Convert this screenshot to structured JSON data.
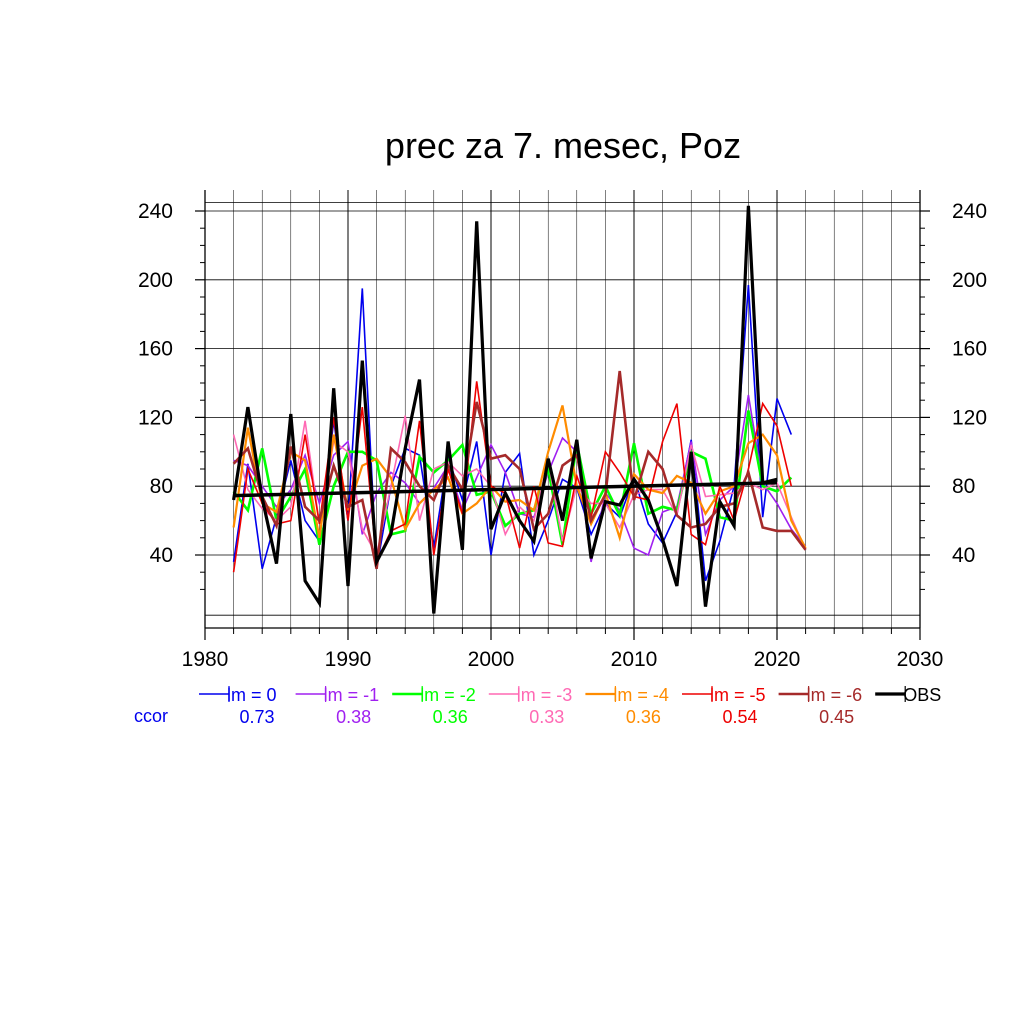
{
  "chart_data": {
    "type": "line",
    "title": "prec za 7. mesec, Poz",
    "xlabel": "",
    "ylabel": "",
    "xlim": [
      1980,
      2030
    ],
    "ylim": [
      5,
      245
    ],
    "x_ticks": [
      1980,
      1990,
      2000,
      2010,
      2020,
      2030
    ],
    "y_ticks": [
      40,
      80,
      120,
      160,
      200,
      240
    ],
    "grid": true,
    "legend_position": "bottom",
    "ccor_label": "ccor",
    "x": [
      1982,
      1983,
      1984,
      1985,
      1986,
      1987,
      1988,
      1989,
      1990,
      1991,
      1992,
      1993,
      1994,
      1995,
      1996,
      1997,
      1998,
      1999,
      2000,
      2001,
      2002,
      2003,
      2004,
      2005,
      2006,
      2007,
      2008,
      2009,
      2010,
      2011,
      2012,
      2013,
      2014,
      2015,
      2016,
      2017,
      2018,
      2019,
      2020,
      2021,
      2022
    ],
    "series": [
      {
        "name": "lm = 0",
        "ccor": "0.73",
        "color": "#0000ee",
        "width": 1.6,
        "values": [
          36,
          93,
          32,
          62,
          95,
          60,
          48,
          118,
          60,
          195,
          32,
          80,
          102,
          98,
          44,
          97,
          72,
          106,
          40,
          88,
          99,
          40,
          60,
          84,
          79,
          52,
          70,
          62,
          85,
          58,
          47,
          65,
          107,
          25,
          48,
          80,
          197,
          62,
          131,
          110,
          null
        ]
      },
      {
        "name": "lm = -1",
        "ccor": "0.38",
        "color": "#a020f0",
        "width": 1.6,
        "values": [
          95,
          92,
          80,
          68,
          78,
          98,
          70,
          98,
          106,
          52,
          76,
          88,
          82,
          70,
          79,
          92,
          66,
          85,
          104,
          88,
          64,
          62,
          88,
          108,
          100,
          36,
          76,
          66,
          44,
          40,
          65,
          68,
          106,
          52,
          72,
          80,
          133,
          82,
          70,
          55,
          45
        ]
      },
      {
        "name": "lm = -2",
        "ccor": "0.36",
        "color": "#00ff00",
        "width": 2.6,
        "values": [
          77,
          66,
          102,
          60,
          74,
          90,
          46,
          80,
          100,
          100,
          95,
          52,
          54,
          97,
          88,
          95,
          104,
          75,
          77,
          57,
          64,
          66,
          90,
          46,
          105,
          64,
          80,
          63,
          105,
          64,
          68,
          66,
          100,
          96,
          62,
          60,
          124,
          80,
          77,
          85,
          null
        ]
      },
      {
        "name": "lm = -3",
        "ccor": "0.33",
        "color": "#ff69b4",
        "width": 1.6,
        "values": [
          110,
          78,
          67,
          60,
          68,
          118,
          58,
          106,
          100,
          55,
          40,
          80,
          121,
          60,
          90,
          94,
          86,
          90,
          80,
          52,
          68,
          60,
          95,
          48,
          80,
          70,
          70,
          56,
          75,
          78,
          78,
          63,
          104,
          74,
          75,
          76,
          82,
          78,
          82,
          62,
          43
        ]
      },
      {
        "name": "lm = -4",
        "ccor": "0.36",
        "color": "#ff8c00",
        "width": 2.2,
        "values": [
          56,
          114,
          70,
          65,
          100,
          95,
          50,
          110,
          66,
          92,
          96,
          85,
          55,
          70,
          78,
          85,
          64,
          70,
          80,
          71,
          72,
          66,
          100,
          127,
          80,
          58,
          76,
          50,
          87,
          78,
          76,
          86,
          82,
          64,
          77,
          80,
          105,
          110,
          98,
          60,
          44
        ]
      },
      {
        "name": "lm = -5",
        "ccor": "0.54",
        "color": "#ee0000",
        "width": 1.6,
        "values": [
          30,
          90,
          70,
          58,
          60,
          110,
          58,
          120,
          60,
          126,
          36,
          54,
          58,
          118,
          40,
          90,
          64,
          141,
          80,
          76,
          44,
          80,
          47,
          45,
          86,
          62,
          100,
          88,
          74,
          72,
          106,
          128,
          52,
          46,
          80,
          60,
          90,
          128,
          115,
          80,
          null
        ]
      },
      {
        "name": "lm = -6",
        "ccor": "0.45",
        "color": "#a52a2a",
        "width": 2.6,
        "values": [
          93,
          102,
          74,
          57,
          103,
          68,
          60,
          92,
          68,
          72,
          32,
          102,
          94,
          80,
          72,
          92,
          78,
          129,
          96,
          98,
          90,
          55,
          64,
          92,
          98,
          60,
          75,
          147,
          72,
          100,
          90,
          63,
          56,
          58,
          68,
          70,
          88,
          56,
          54,
          54,
          43
        ]
      },
      {
        "name": "OBS",
        "ccor": "",
        "color": "#000000",
        "width": 3.2,
        "values": [
          72,
          126,
          73,
          35,
          122,
          25,
          12,
          137,
          22,
          153,
          36,
          52,
          102,
          142,
          6,
          106,
          43,
          234,
          55,
          76,
          60,
          48,
          96,
          60,
          107,
          38,
          71,
          69,
          84,
          72,
          49,
          22,
          100,
          10,
          71,
          57,
          243,
          82,
          84,
          null,
          null
        ]
      }
    ],
    "trend": {
      "label": "OBS trend",
      "x": [
        1982,
        2020
      ],
      "y": [
        74.5,
        82
      ]
    }
  }
}
